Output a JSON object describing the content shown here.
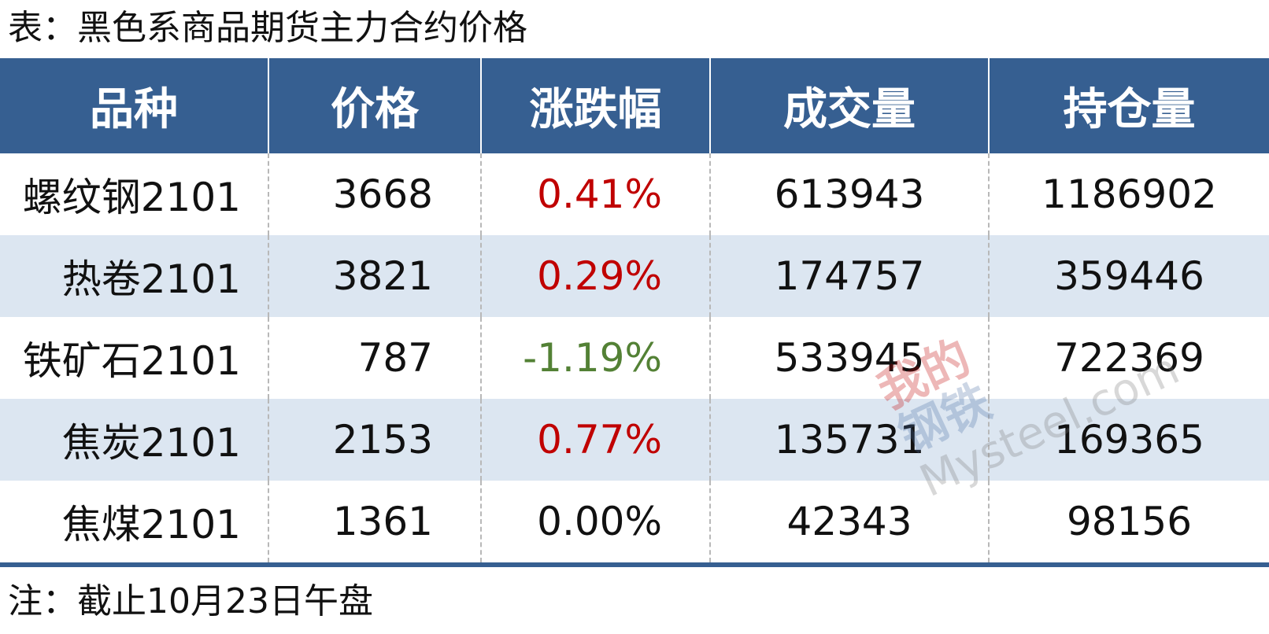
{
  "title": "表：黑色系商品期货主力合约价格",
  "table": {
    "headers": [
      "品种",
      "价格",
      "涨跌幅",
      "成交量",
      "持仓量"
    ],
    "rows": [
      [
        "螺纹钢2101",
        "3668",
        "0.41%",
        "613943",
        "1186902"
      ],
      [
        "热卷2101",
        "3821",
        "0.29%",
        "174757",
        "359446"
      ],
      [
        "铁矿石2101",
        "787",
        "-1.19%",
        "533945",
        "722369"
      ],
      [
        "焦炭2101",
        "2153",
        "0.77%",
        "135731",
        "169365"
      ],
      [
        "焦煤2101",
        "1361",
        "0.00%",
        "42343",
        "98156"
      ]
    ]
  },
  "watermark": {
    "line1": "我的",
    "line2": "钢铁",
    "line3": "Mysteel.com"
  },
  "note": "注：截止10月23日午盘"
}
